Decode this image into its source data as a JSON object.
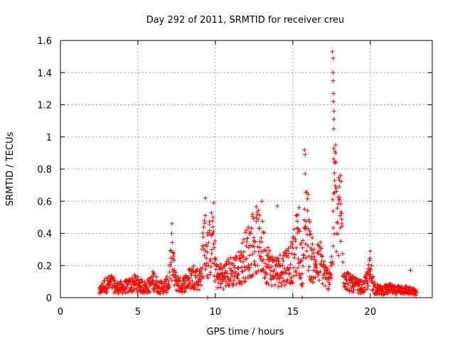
{
  "chart_data": {
    "type": "scatter",
    "title": "Day 292 of 2011, SRMTID for receiver creu",
    "xlabel": "GPS time / hours",
    "ylabel": "SRMTID / TECUs",
    "xlim": [
      0,
      24
    ],
    "ylim": [
      0,
      1.6
    ],
    "xticks": [
      "0",
      "5",
      "10",
      "15",
      "20"
    ],
    "yticks": [
      "0",
      "0.2",
      "0.4",
      "0.6",
      "0.8",
      "1",
      "1.2",
      "1.4",
      "1.6"
    ],
    "grid": true,
    "marker": "+",
    "series_color": "#ff0000",
    "envelope": [
      [
        2.5,
        0.04
      ],
      [
        2.8,
        0.08
      ],
      [
        3.0,
        0.09
      ],
      [
        3.3,
        0.1
      ],
      [
        3.6,
        0.07
      ],
      [
        4.0,
        0.07
      ],
      [
        4.4,
        0.08
      ],
      [
        4.8,
        0.1
      ],
      [
        5.2,
        0.08
      ],
      [
        5.5,
        0.07
      ],
      [
        5.8,
        0.09
      ],
      [
        6.0,
        0.12
      ],
      [
        6.3,
        0.08
      ],
      [
        6.6,
        0.07
      ],
      [
        7.0,
        0.1
      ],
      [
        7.2,
        0.3
      ],
      [
        7.4,
        0.12
      ],
      [
        7.8,
        0.08
      ],
      [
        8.2,
        0.12
      ],
      [
        8.6,
        0.15
      ],
      [
        9.0,
        0.12
      ],
      [
        9.3,
        0.4
      ],
      [
        9.5,
        0.3
      ],
      [
        9.8,
        0.4
      ],
      [
        10.1,
        0.15
      ],
      [
        10.5,
        0.15
      ],
      [
        11.0,
        0.18
      ],
      [
        11.5,
        0.2
      ],
      [
        12.0,
        0.3
      ],
      [
        12.3,
        0.35
      ],
      [
        12.6,
        0.4
      ],
      [
        13.0,
        0.35
      ],
      [
        13.3,
        0.25
      ],
      [
        13.6,
        0.2
      ],
      [
        14.0,
        0.18
      ],
      [
        14.5,
        0.22
      ],
      [
        15.0,
        0.25
      ],
      [
        15.3,
        0.4
      ],
      [
        15.6,
        0.2
      ],
      [
        15.9,
        0.6
      ],
      [
        16.1,
        0.3
      ],
      [
        16.4,
        0.22
      ],
      [
        16.8,
        0.25
      ],
      [
        17.2,
        0.12
      ],
      [
        17.5,
        0.2
      ],
      [
        17.7,
        0.8
      ],
      [
        17.9,
        0.5
      ],
      [
        18.1,
        0.6
      ],
      [
        18.3,
        0.15
      ],
      [
        18.7,
        0.1
      ],
      [
        19.2,
        0.08
      ],
      [
        19.6,
        0.07
      ],
      [
        20.0,
        0.18
      ],
      [
        20.3,
        0.06
      ],
      [
        20.8,
        0.05
      ],
      [
        21.2,
        0.06
      ],
      [
        21.6,
        0.05
      ],
      [
        22.0,
        0.06
      ],
      [
        22.4,
        0.05
      ],
      [
        22.8,
        0.04
      ],
      [
        23.0,
        0.03
      ]
    ],
    "spikes": [
      [
        7.2,
        0.46
      ],
      [
        9.35,
        0.62
      ],
      [
        9.9,
        0.59
      ],
      [
        12.4,
        0.52
      ],
      [
        13.0,
        0.6
      ],
      [
        14.0,
        0.57
      ],
      [
        15.4,
        0.56
      ],
      [
        15.75,
        0.92
      ],
      [
        15.8,
        0.89
      ],
      [
        15.8,
        0.77
      ],
      [
        16.1,
        0.47
      ],
      [
        17.55,
        1.53
      ],
      [
        17.6,
        1.49
      ],
      [
        17.6,
        1.4
      ],
      [
        17.6,
        1.35
      ],
      [
        17.62,
        1.27
      ],
      [
        17.62,
        1.22
      ],
      [
        17.65,
        1.16
      ],
      [
        17.65,
        1.11
      ],
      [
        17.65,
        1.05
      ],
      [
        17.65,
        0.93
      ],
      [
        17.7,
        0.84
      ],
      [
        17.7,
        0.73
      ],
      [
        17.8,
        0.68
      ],
      [
        18.1,
        0.76
      ],
      [
        18.0,
        0.69
      ],
      [
        20.0,
        0.29
      ],
      [
        22.6,
        0.17
      ],
      [
        15.6,
        0.0
      ],
      [
        9.5,
        0.0
      ]
    ]
  }
}
